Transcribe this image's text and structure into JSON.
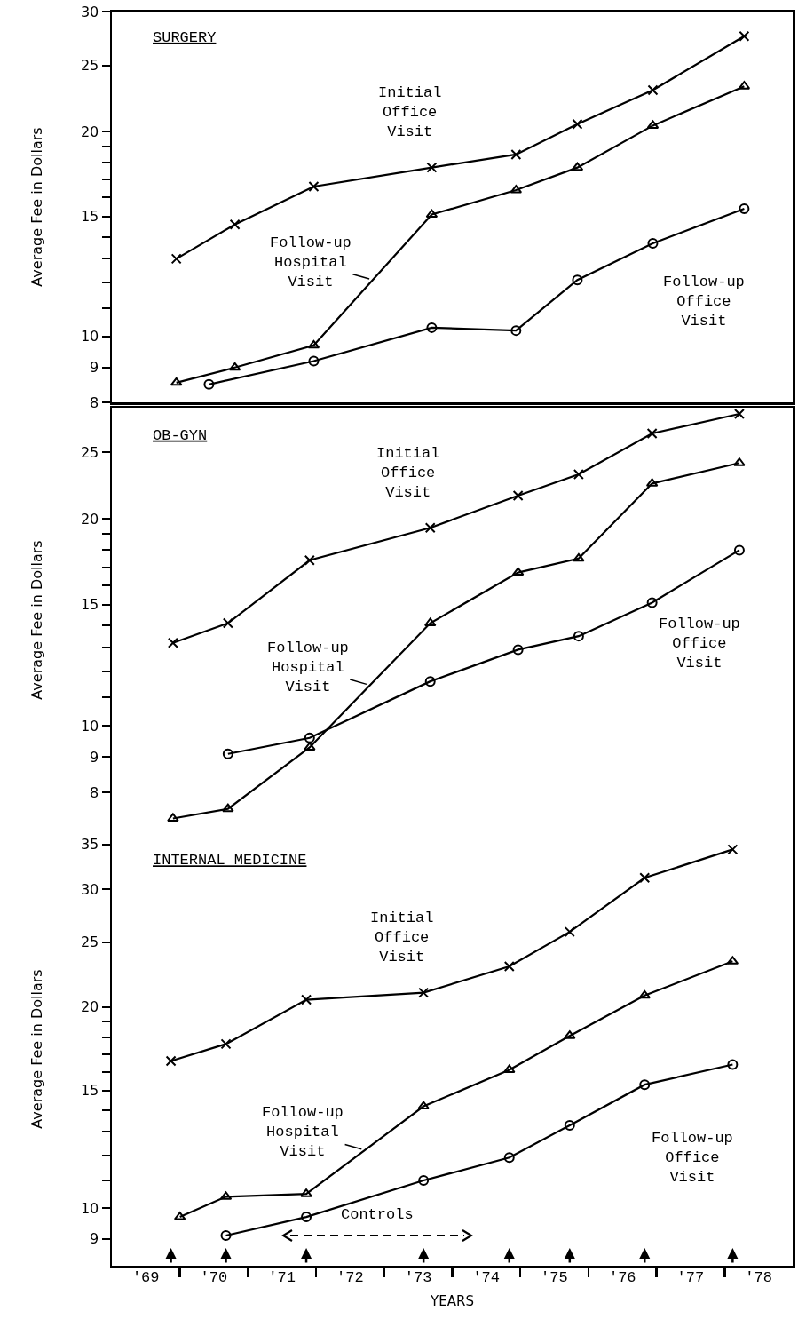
{
  "chart_data": [
    {
      "type": "line",
      "title": "SURGERY",
      "ylabel": "Average Fee in Dollars",
      "x": [
        "1969-12-13",
        "1970-10-23",
        "1971-12-20",
        "1973-09-13",
        "1974-12-09",
        "1975-11-03",
        "1976-12-12",
        "1978-04-16"
      ],
      "series": [
        {
          "name": "Initial Office Visit",
          "color": "#000000",
          "marker": "cross",
          "values": [
            13.0,
            14.6,
            16.6,
            17.7,
            18.5,
            20.5,
            23.0,
            27.6
          ]
        },
        {
          "name": "Follow-up Hospital Visit",
          "color": "#000000",
          "marker": "triangle",
          "values": [
            8.55,
            9.0,
            9.7,
            15.1,
            16.4,
            17.7,
            20.4,
            23.3
          ]
        },
        {
          "name": "Follow-up Office Visit",
          "color": "#000000",
          "marker": "circle",
          "x": [
            "1970-06-06",
            "1971-12-20",
            "1973-09-13",
            "1974-12-09",
            "1975-11-03",
            "1976-12-12",
            "1978-04-16"
          ],
          "values": [
            8.5,
            9.2,
            10.3,
            10.2,
            12.1,
            13.7,
            15.4
          ]
        }
      ],
      "log": "y",
      "xlim": [
        "1969-01-01",
        "1979-01-01"
      ],
      "ylim": [
        8,
        30
      ],
      "yticks": [
        8,
        9,
        10,
        {
          "value": 11,
          "label": null
        },
        {
          "value": 12,
          "label": null
        },
        {
          "value": 13,
          "label": null
        },
        {
          "value": 14,
          "label": null
        },
        15,
        {
          "value": 16,
          "label": null
        },
        {
          "value": 17,
          "label": null
        },
        {
          "value": 18,
          "label": null
        },
        {
          "value": 19,
          "label": null
        },
        20,
        25,
        30
      ],
      "tick_labels": "y",
      "line_style": "solid"
    },
    {
      "type": "line",
      "title": "OB-GYN",
      "ylabel": "Average Fee in Dollars",
      "x": [
        "1969-11-25",
        "1970-09-16",
        "1971-11-28",
        "1973-09-05",
        "1974-12-20",
        "1975-11-10",
        "1976-12-08",
        "1978-03-21"
      ],
      "series": [
        {
          "name": "Initial Office Visit",
          "color": "#000000",
          "marker": "cross",
          "values": [
            13.2,
            14.1,
            17.4,
            19.4,
            21.6,
            23.2,
            26.6,
            28.4
          ]
        },
        {
          "name": "Follow-up Hospital Visit",
          "color": "#000000",
          "marker": "triangle",
          "values": [
            7.33,
            7.57,
            9.3,
            14.1,
            16.7,
            17.5,
            22.5,
            24.1
          ]
        },
        {
          "name": "Follow-up Office Visit",
          "color": "#000000",
          "marker": "circle",
          "x": [
            "1970-09-16",
            "1971-11-28",
            "1973-09-05",
            "1974-12-20",
            "1975-11-10",
            "1976-12-08",
            "1978-03-21"
          ],
          "values": [
            9.1,
            9.6,
            11.6,
            12.9,
            13.5,
            15.1,
            18.0
          ]
        }
      ],
      "log": "y",
      "xlim": [
        "1969-01-01",
        "1979-01-01"
      ],
      "ylim": [
        7,
        29
      ],
      "yticks": [
        8,
        9,
        10,
        {
          "value": 11,
          "label": null
        },
        {
          "value": 12,
          "label": null
        },
        {
          "value": 13,
          "label": null
        },
        {
          "value": 14,
          "label": null
        },
        15,
        {
          "value": 16,
          "label": null
        },
        {
          "value": 17,
          "label": null
        },
        {
          "value": 18,
          "label": null
        },
        {
          "value": 19,
          "label": null
        },
        20,
        25
      ],
      "tick_labels": "y",
      "line_style": "solid"
    },
    {
      "type": "line",
      "title": "INTERNAL MEDICINE",
      "ylabel": "Average Fee in Dollars",
      "xlabel": "YEARS",
      "x": [
        "1969-11-14",
        "1970-09-05",
        "1971-11-10",
        "1973-07-31",
        "1974-11-03",
        "1975-09-23",
        "1976-10-29",
        "1978-02-13"
      ],
      "series": [
        {
          "name": "Initial Office Visit",
          "color": "#000000",
          "marker": "cross",
          "values": [
            16.6,
            17.6,
            20.5,
            21.0,
            23.0,
            25.9,
            31.2,
            34.4
          ]
        },
        {
          "name": "Follow-up Hospital Visit",
          "color": "#000000",
          "marker": "triangle",
          "x": [
            "1970-01-01",
            "1970-09-05",
            "1971-11-10",
            "1973-07-31",
            "1974-11-03",
            "1975-09-23",
            "1976-10-29",
            "1978-02-13"
          ],
          "values": [
            9.7,
            10.4,
            10.5,
            14.2,
            16.1,
            18.1,
            20.8,
            23.4
          ]
        },
        {
          "name": "Follow-up Office Visit",
          "color": "#000000",
          "marker": "circle",
          "x": [
            "1970-09-05",
            "1971-11-10",
            "1973-07-31",
            "1974-11-03",
            "1975-09-23",
            "1976-10-29",
            "1978-02-13"
          ],
          "values": [
            9.1,
            9.7,
            11.0,
            11.9,
            13.3,
            15.3,
            16.4
          ]
        }
      ],
      "log": "y",
      "xlim": [
        "1969-01-01",
        "1979-01-01"
      ],
      "ylim": [
        8.2,
        36.5
      ],
      "xticks": [
        {
          "value": "1970-01-01",
          "label": null
        },
        {
          "value": "1971-01-01",
          "label": null
        },
        {
          "value": "1972-01-01",
          "label": null
        },
        {
          "value": "1973-01-01",
          "label": null
        },
        {
          "value": "1974-01-01",
          "label": null
        },
        {
          "value": "1975-01-01",
          "label": null
        },
        {
          "value": "1976-01-01",
          "label": null
        },
        {
          "value": "1977-01-01",
          "label": null
        },
        {
          "value": "1978-01-01",
          "label": null
        },
        {
          "value": "1969-07-02",
          "label": "'69"
        },
        {
          "value": "1970-07-02",
          "label": "'70"
        },
        {
          "value": "1971-07-02",
          "label": "'71"
        },
        {
          "value": "1972-07-02",
          "label": "'72"
        },
        {
          "value": "1973-07-02",
          "label": "'73"
        },
        {
          "value": "1974-07-02",
          "label": "'74"
        },
        {
          "value": "1975-07-02",
          "label": "'75"
        },
        {
          "value": "1976-07-02",
          "label": "'76"
        },
        {
          "value": "1977-07-02",
          "label": "'77"
        },
        {
          "value": "1978-07-02",
          "label": "'78"
        }
      ],
      "yticks": [
        9,
        10,
        {
          "value": 11,
          "label": null
        },
        {
          "value": 12,
          "label": null
        },
        {
          "value": 13,
          "label": null
        },
        {
          "value": 14,
          "label": null
        },
        15,
        {
          "value": 16,
          "label": null
        },
        {
          "value": 17,
          "label": null
        },
        {
          "value": 18,
          "label": null
        },
        {
          "value": 19,
          "label": null
        },
        20,
        25,
        30,
        35
      ],
      "annotations": [
        "Controls"
      ],
      "line_style": "solid"
    }
  ]
}
